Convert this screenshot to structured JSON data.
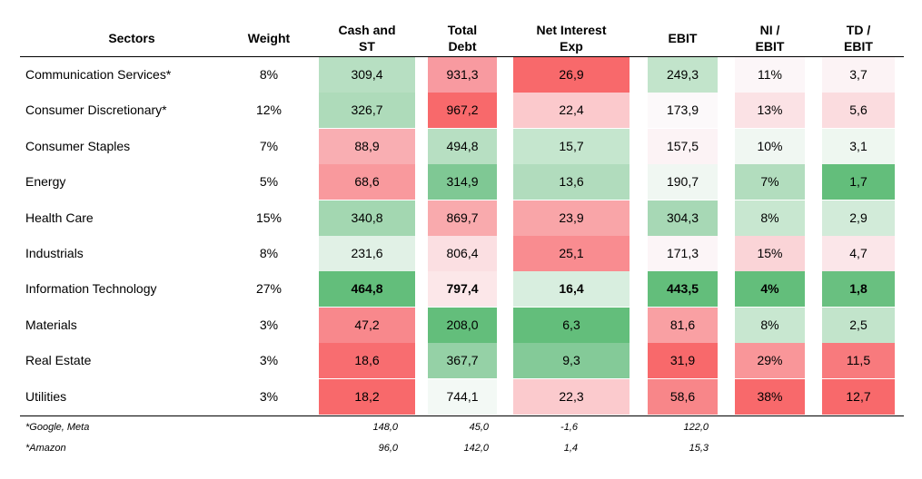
{
  "headers": {
    "sectors": "Sectors",
    "weight": "Weight",
    "cash": "Cash and\nST",
    "debt": "Total\nDebt",
    "nie": "Net Interest\nExp",
    "ebit": "EBIT",
    "niebit": "NI /\nEBIT",
    "tdebit": "TD /\nEBIT"
  },
  "rows": [
    {
      "sector": "Communication Services*",
      "weight": "8%",
      "cash": "309,4",
      "debt": "931,3",
      "nie": "26,9",
      "ebit": "249,3",
      "niebit": "11%",
      "tdebit": "3,7",
      "colors": {
        "cash": "#b7dfc2",
        "debt": "#f89aa0",
        "nie": "#f8696b",
        "ebit": "#c2e4cb",
        "niebit": "#fcf6f8",
        "tdebit": "#fcf3f5"
      }
    },
    {
      "sector": "Consumer Discretionary*",
      "weight": "12%",
      "cash": "326,7",
      "debt": "967,2",
      "nie": "22,4",
      "ebit": "173,9",
      "niebit": "13%",
      "tdebit": "5,6",
      "colors": {
        "cash": "#aedbba",
        "debt": "#f8696b",
        "nie": "#fbc9cc",
        "ebit": "#fcf9fa",
        "niebit": "#fbe2e5",
        "tdebit": "#fbdcdf"
      }
    },
    {
      "sector": "Consumer Staples",
      "weight": "7%",
      "cash": "88,9",
      "debt": "494,8",
      "nie": "15,7",
      "ebit": "157,5",
      "niebit": "10%",
      "tdebit": "3,1",
      "colors": {
        "cash": "#f9aeb2",
        "debt": "#b7dfc2",
        "nie": "#c5e6ce",
        "ebit": "#fcf3f5",
        "niebit": "#f0f7f2",
        "tdebit": "#eef7f0"
      }
    },
    {
      "sector": "Energy",
      "weight": "5%",
      "cash": "68,6",
      "debt": "314,9",
      "nie": "13,6",
      "ebit": "190,7",
      "niebit": "7%",
      "tdebit": "1,7",
      "colors": {
        "cash": "#f9999d",
        "debt": "#7fc894",
        "nie": "#b1dcbd",
        "ebit": "#f0f7f2",
        "niebit": "#b2ddbe",
        "tdebit": "#63be7b"
      }
    },
    {
      "sector": "Health Care",
      "weight": "15%",
      "cash": "340,8",
      "debt": "869,7",
      "nie": "23,9",
      "ebit": "304,3",
      "niebit": "8%",
      "tdebit": "2,9",
      "colors": {
        "cash": "#a3d7b1",
        "debt": "#f9aaad",
        "nie": "#f9a5a8",
        "ebit": "#a7d8b5",
        "niebit": "#c8e7d0",
        "tdebit": "#d2ebd9"
      }
    },
    {
      "sector": "Industrials",
      "weight": "8%",
      "cash": "231,6",
      "debt": "806,4",
      "nie": "25,1",
      "ebit": "171,3",
      "niebit": "15%",
      "tdebit": "4,7",
      "colors": {
        "cash": "#e1f1e6",
        "debt": "#fbdfe2",
        "nie": "#f98c90",
        "ebit": "#fcf5f7",
        "niebit": "#fad4d7",
        "tdebit": "#fbe6e9"
      }
    },
    {
      "sector": "Information Technology",
      "weight": "27%",
      "cash": "464,8",
      "debt": "797,4",
      "nie": "16,4",
      "ebit": "443,5",
      "niebit": "4%",
      "tdebit": "1,8",
      "bold": true,
      "colors": {
        "cash": "#63be7b",
        "debt": "#fce7e9",
        "nie": "#d8eedf",
        "ebit": "#63be7b",
        "niebit": "#63be7b",
        "tdebit": "#69c080"
      }
    },
    {
      "sector": "Materials",
      "weight": "3%",
      "cash": "47,2",
      "debt": "208,0",
      "nie": "6,3",
      "ebit": "81,6",
      "niebit": "8%",
      "tdebit": "2,5",
      "colors": {
        "cash": "#f8888c",
        "debt": "#63be7b",
        "nie": "#63be7b",
        "ebit": "#f9a0a3",
        "niebit": "#c8e7d0",
        "tdebit": "#c2e4cb"
      }
    },
    {
      "sector": "Real Estate",
      "weight": "3%",
      "cash": "18,6",
      "debt": "367,7",
      "nie": "9,3",
      "ebit": "31,9",
      "niebit": "29%",
      "tdebit": "11,5",
      "colors": {
        "cash": "#f86d70",
        "debt": "#95d1a6",
        "nie": "#84ca98",
        "ebit": "#f8696b",
        "niebit": "#f99699",
        "tdebit": "#f87a7d"
      }
    },
    {
      "sector": "Utilities",
      "weight": "3%",
      "cash": "18,2",
      "debt": "744,1",
      "nie": "22,3",
      "ebit": "58,6",
      "niebit": "38%",
      "tdebit": "12,7",
      "colors": {
        "cash": "#f8696b",
        "debt": "#f3f9f5",
        "nie": "#fbcacd",
        "ebit": "#f88689",
        "niebit": "#f8696b",
        "tdebit": "#f8696b"
      }
    }
  ],
  "notes": [
    {
      "label": "*Google, Meta",
      "cash": "148,0",
      "debt": "45,0",
      "nie": "-1,6",
      "ebit": "122,0"
    },
    {
      "label": "*Amazon",
      "cash": "96,0",
      "debt": "142,0",
      "nie": "1,4",
      "ebit": "15,3"
    }
  ]
}
